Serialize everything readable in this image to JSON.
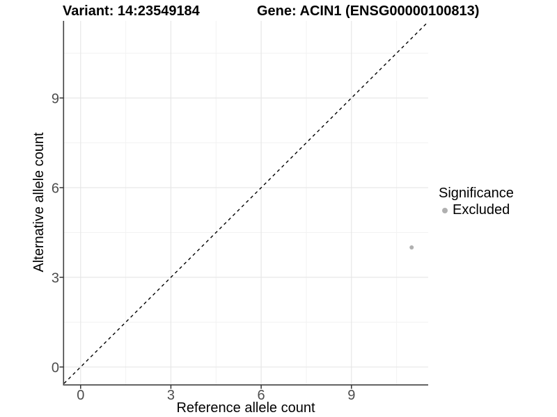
{
  "header": {
    "variant_title": "Variant: 14:23549184",
    "gene_title": "Gene: ACIN1 (ENSG00000100813)"
  },
  "chart_data": {
    "type": "scatter",
    "xlabel": "Reference allele count",
    "ylabel": "Alternative allele count",
    "xlim": [
      -0.55,
      11.55
    ],
    "ylim": [
      -0.58,
      11.58
    ],
    "x_ticks": [
      0,
      3,
      6,
      9
    ],
    "y_ticks": [
      0,
      3,
      6,
      9
    ],
    "x_minor_ticks": [
      1.5,
      4.5,
      7.5,
      10.5
    ],
    "y_minor_ticks": [
      1.5,
      4.5,
      7.5,
      10.5
    ],
    "grid": true,
    "points": [
      {
        "x": 11,
        "y": 4,
        "significance": "Excluded"
      }
    ],
    "reference_line": {
      "equation": "y = x",
      "style": "dashed",
      "color": "#000000"
    },
    "legend": {
      "title": "Significance",
      "position": "right",
      "entries": [
        {
          "label": "Excluded",
          "color": "#b0b0b0"
        }
      ]
    }
  },
  "colors": {
    "background": "#ffffff",
    "point": "#b0b0b0",
    "major_grid": "#e7e7e7",
    "minor_grid": "#f2f2f2",
    "axis_line": "#404040",
    "tick_mark": "#333333",
    "tick_label": "#4d4d4d",
    "title_text": "#000000"
  }
}
